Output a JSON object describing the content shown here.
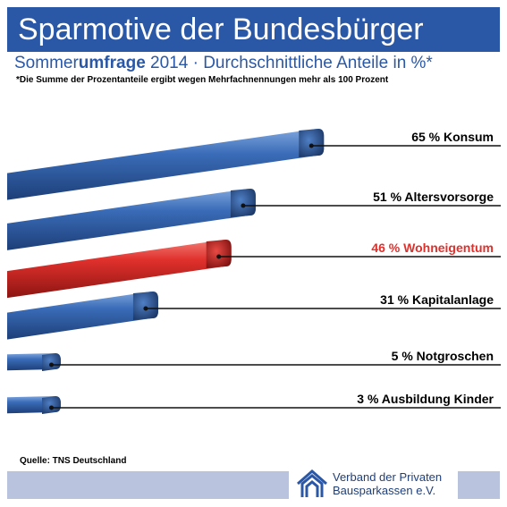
{
  "header": {
    "title": "Sparmotive der Bundesbürger",
    "subtitle_part1": "Sommer",
    "subtitle_bold": "umfrage",
    "subtitle_part2": " 2014 · Durchschnittliche Anteile in %*",
    "footnote": "*Die Summe der Prozentanteile ergibt wegen Mehrfachnennungen mehr als 100 Prozent"
  },
  "chart_data": {
    "type": "bar",
    "orientation": "horizontal",
    "unit": "%",
    "categories": [
      "Konsum",
      "Altersvorsorge",
      "Wohneigentum",
      "Kapitalanlage",
      "Notgroschen",
      "Ausbildung Kinder"
    ],
    "values": [
      65,
      51,
      46,
      31,
      5,
      3
    ],
    "labels": [
      "65 % Konsum",
      "51 % Altersvorsorge",
      "46 % Wohneigentum",
      "31 % Kapitalanlage",
      "5 % Notgroschen",
      "3 % Ausbildung Kinder"
    ],
    "highlight": "Wohneigentum",
    "colors": {
      "bar": "#3a6cb8",
      "bar_highlight": "#e0302c",
      "label": "#000000",
      "label_highlight": "#e0302c"
    },
    "grid": false,
    "legend": "none"
  },
  "footer": {
    "source": "Quelle: TNS Deutschland",
    "logo_line1": "Verband der Privaten",
    "logo_line2": "Bausparkassen e.V.",
    "logo_icon": "house-outline-icon"
  }
}
